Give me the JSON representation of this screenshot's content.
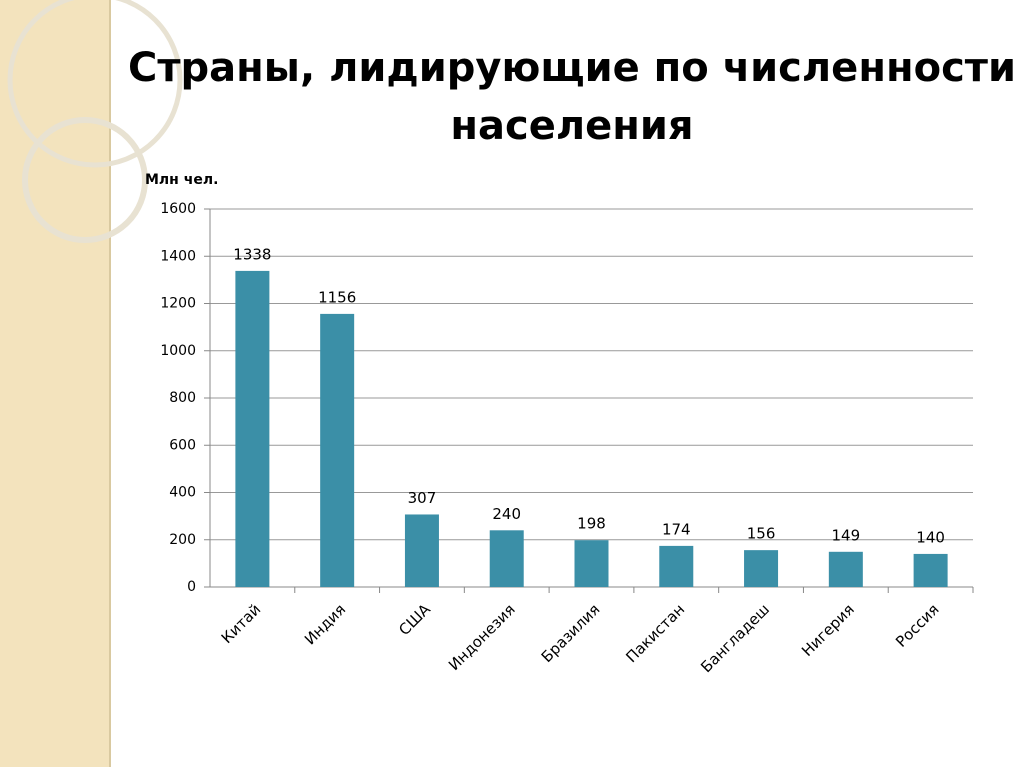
{
  "chart_data": {
    "type": "bar",
    "title": "Страны, лидирующие по численности населения",
    "y_label": "Млн чел.",
    "categories": [
      "Китай",
      "Индия",
      "США",
      "Индонезия",
      "Бразилия",
      "Пакистан",
      "Бангладеш",
      "Нигерия",
      "Россия"
    ],
    "values": [
      1338,
      1156,
      307,
      240,
      198,
      174,
      156,
      149,
      140
    ],
    "color": "#3b8fa7",
    "ylim": [
      0,
      1600
    ],
    "yticks": [
      0,
      200,
      400,
      600,
      800,
      1000,
      1200,
      1400,
      1600
    ],
    "grid": true
  }
}
